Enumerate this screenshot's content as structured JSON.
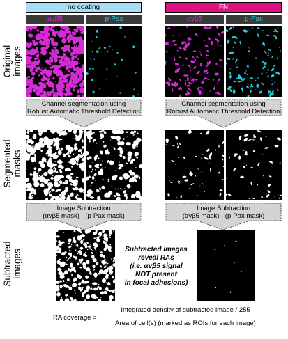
{
  "conditions": [
    {
      "label": "no coating",
      "color": "#a9dcf5",
      "text_color": "#000000"
    },
    {
      "label": "FN",
      "color": "#e0127f",
      "text_color": "#ffffff"
    }
  ],
  "channels": [
    {
      "label": "αvβ5",
      "color": "#d62ad6"
    },
    {
      "label": "p-Pax",
      "color": "#2ac6d6"
    }
  ],
  "row_labels": {
    "original": [
      "Original",
      "images"
    ],
    "segmented": [
      "Segmented",
      "masks"
    ],
    "subtracted": [
      "Subtracted",
      "images"
    ]
  },
  "steps": {
    "segmentation": [
      "Channel segmentation using",
      "Robust Automatic Threshold Detection"
    ],
    "subtraction": [
      "Image Subtraction",
      "(αvβ5 mask) - (p-Pax mask)"
    ]
  },
  "note": [
    "Subtracted images",
    "reveal RAs",
    "(i.e. αvβ5 signal",
    "NOT present",
    "in focal adhesions)"
  ],
  "formula": {
    "lhs": "RA coverage =",
    "numerator": "Integrated density of subtracted image / 255",
    "denominator": "Area of cell(s) (marked as ROIs for each image)"
  },
  "colors": {
    "magenta": "#d62ad6",
    "cyan": "#2ac6d6",
    "arrow_fill": "#d4d4d4",
    "header_dark": "#3a3a3a"
  }
}
